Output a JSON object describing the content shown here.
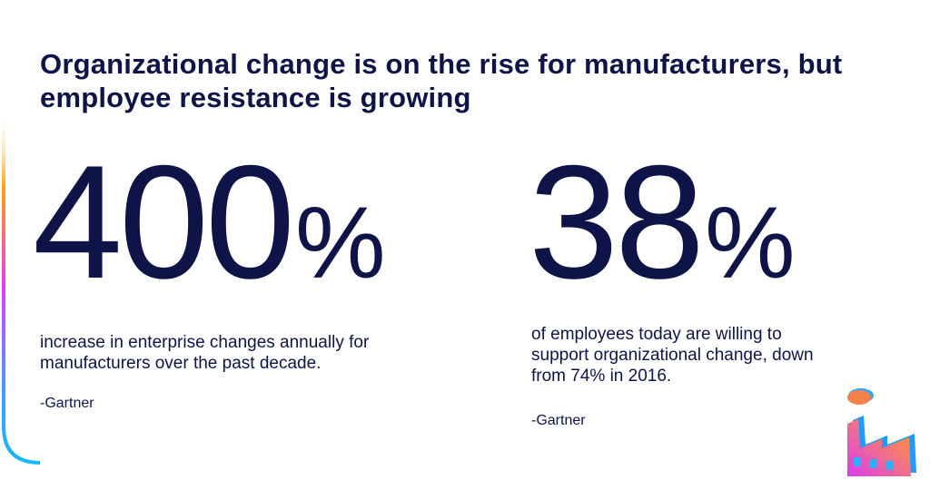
{
  "title": "Organizational change is on the rise for manufacturers, but employee resistance is growing",
  "stats": [
    {
      "value": "400",
      "unit": "%",
      "description": "increase in enterprise changes annually for manufacturers over the past decade.",
      "source": "-Gartner"
    },
    {
      "value": "38",
      "unit": "%",
      "description": "of employees today are willing to support organizational change, down from 74% in 2016.",
      "source": "-Gartner"
    }
  ],
  "colors": {
    "text": "#0f1448",
    "orange": "#ff9f1c",
    "magenta": "#e03cf0",
    "blue": "#1fb0ff"
  },
  "icons": {
    "factory": "factory-icon"
  }
}
